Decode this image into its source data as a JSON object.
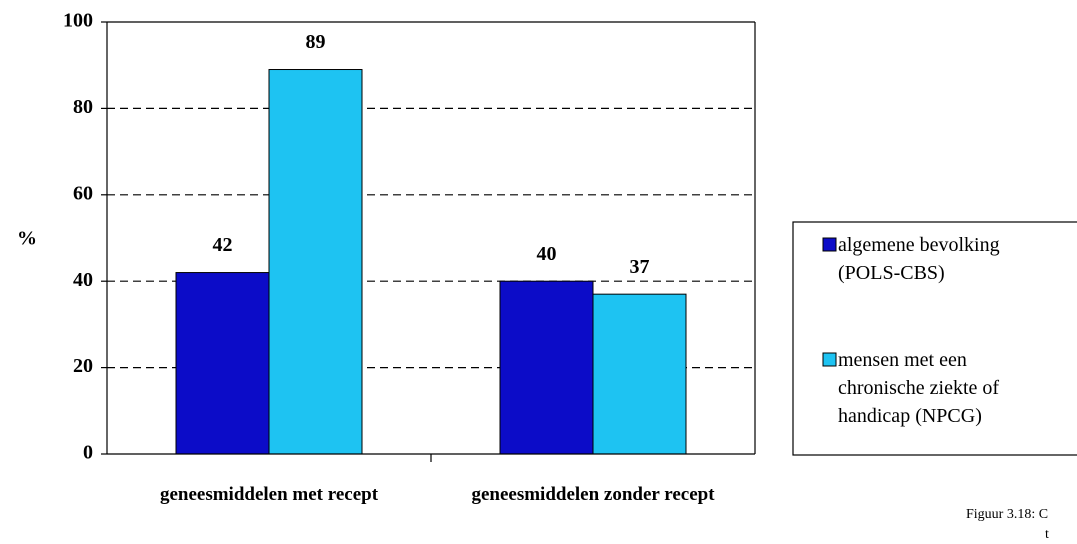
{
  "chart_data": {
    "type": "bar",
    "y_label": "%",
    "categories": [
      "geneesmiddelen met recept",
      "geneesmiddelen zonder recept"
    ],
    "series": [
      {
        "name": "algemene bevolking (POLS-CBS)",
        "color": "#0c0cc8",
        "values": [
          42,
          40
        ]
      },
      {
        "name": "mensen met een chronische ziekte of handicap (NPCG)",
        "color": "#1ec3f2",
        "values": [
          89,
          37
        ]
      }
    ],
    "ylim": [
      0,
      100
    ],
    "yticks": [
      0,
      20,
      40,
      60,
      80,
      100
    ],
    "grid": true,
    "legend": "right",
    "annotations": [
      "Figuur 3.18: C",
      "t"
    ]
  }
}
